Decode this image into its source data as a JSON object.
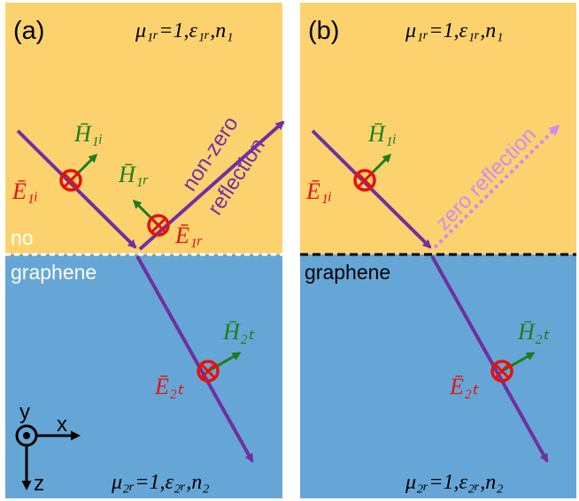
{
  "panels": [
    {
      "label": "(a)",
      "top_medium": "μ₁ᵣ=1,ε₁ᵣ,n₁",
      "bottom_medium": "μ₂ᵣ=1,ε₂ᵣ,n₂",
      "interface_label_upper": "no",
      "interface_label_lower": "graphene",
      "reflection_label_line1": "non-zero",
      "reflection_label_line2": "reflection",
      "E_incident": "Ē₁ᵢ",
      "H_incident": "H̄₁ᵢ",
      "E_reflected": "Ē₁ᵣ",
      "H_reflected": "H̄₁ᵣ",
      "E_transmitted": "Ē₂ₜ",
      "H_transmitted": "H̄₂ₜ"
    },
    {
      "label": "(b)",
      "top_medium": "μ₁ᵣ=1,ε₁ᵣ,n₁",
      "bottom_medium": "μ₂ᵣ=1,ε₂ᵣ,n₂",
      "interface_label_lower": "graphene",
      "reflection_label": "zero reflection",
      "E_incident": "Ē₁ᵢ",
      "H_incident": "H̄₁ᵢ",
      "E_transmitted": "Ē₂ₜ",
      "H_transmitted": "H̄₂ₜ"
    }
  ],
  "axes": {
    "y": "y",
    "x": "x",
    "z": "z"
  },
  "colors": {
    "top_medium": "#FCD26F",
    "bottom_medium": "#66A6D6",
    "ray": "#7030A0",
    "ray_zero_reflection": "#D48AF0",
    "e_field": "#E8100C",
    "h_field": "#1B7D1B"
  }
}
